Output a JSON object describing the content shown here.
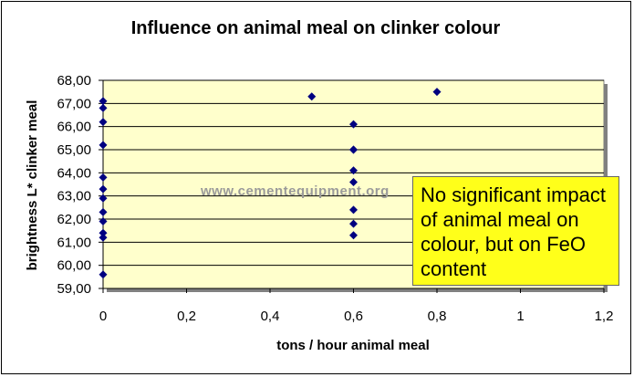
{
  "chart_data": {
    "type": "scatter",
    "title": "Influence on animal meal on clinker colour",
    "xlabel": "tons / hour animal meal",
    "ylabel": "brightness L* clinker meal",
    "xlim": [
      0,
      1.2
    ],
    "ylim": [
      59,
      68
    ],
    "x_ticks": [
      "0",
      "0,2",
      "0,4",
      "0,6",
      "0,8",
      "1",
      "1,2"
    ],
    "y_ticks": [
      "59,00",
      "60,00",
      "61,00",
      "62,00",
      "63,00",
      "64,00",
      "65,00",
      "66,00",
      "67,00",
      "68,00"
    ],
    "grid": "horizontal",
    "points": [
      {
        "x": 0,
        "y": 67.1
      },
      {
        "x": 0,
        "y": 66.8
      },
      {
        "x": 0,
        "y": 66.2
      },
      {
        "x": 0,
        "y": 65.2
      },
      {
        "x": 0,
        "y": 63.8
      },
      {
        "x": 0,
        "y": 63.3
      },
      {
        "x": 0,
        "y": 62.9
      },
      {
        "x": 0,
        "y": 62.3
      },
      {
        "x": 0,
        "y": 61.9
      },
      {
        "x": 0,
        "y": 61.4
      },
      {
        "x": 0,
        "y": 61.2
      },
      {
        "x": 0,
        "y": 59.6
      },
      {
        "x": 0.5,
        "y": 67.3
      },
      {
        "x": 0.6,
        "y": 66.1
      },
      {
        "x": 0.6,
        "y": 65.0
      },
      {
        "x": 0.6,
        "y": 65.0
      },
      {
        "x": 0.6,
        "y": 64.1
      },
      {
        "x": 0.6,
        "y": 63.6
      },
      {
        "x": 0.6,
        "y": 62.4
      },
      {
        "x": 0.6,
        "y": 61.8
      },
      {
        "x": 0.6,
        "y": 61.3
      },
      {
        "x": 0.8,
        "y": 67.5
      }
    ],
    "colors": {
      "plot_bg": "#ffffcc",
      "marker": "#000080",
      "grid": "#000000"
    }
  },
  "watermark": "www.cementequipment.org",
  "annotation": "No significant impact of animal meal on colour, but on FeO content"
}
